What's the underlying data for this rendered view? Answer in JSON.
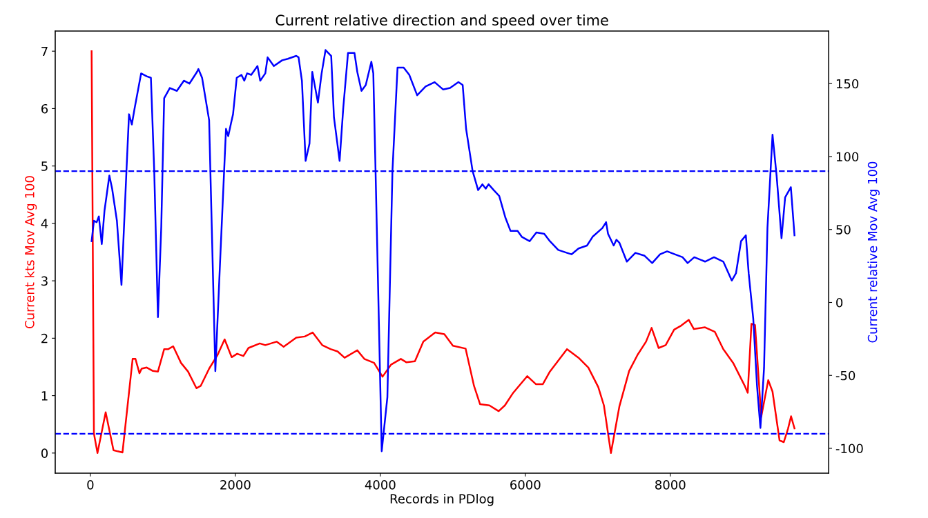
{
  "chart_data": {
    "type": "line",
    "title": "Current relative direction and speed over time",
    "xlabel": "Records in PDlog",
    "ylabel": "Current kts Mov Avg 100",
    "y2label": "Current relative Mov Avg 100",
    "series": [
      {
        "color": "#ff0000",
        "x": [
          17,
          49,
          98,
          211,
          319,
          378,
          443,
          583,
          622,
          677,
          707,
          777,
          863,
          932,
          1018,
          1075,
          1142,
          1250,
          1347,
          1463,
          1522,
          1638,
          1755,
          1852,
          1949,
          2025,
          2111,
          2181,
          2337,
          2413,
          2569,
          2666,
          2840,
          2957,
          3066,
          3198,
          3313,
          3410,
          3507,
          3682,
          3779,
          3914,
          4030,
          4148,
          4283,
          4361,
          4477,
          4593,
          4757,
          4883,
          5001,
          5176,
          5292,
          5376,
          5504,
          5632,
          5718,
          5833,
          6027,
          6145,
          6242,
          6339,
          6575,
          6734,
          6869,
          7006,
          7084,
          7181,
          7297,
          7432,
          7548,
          7665,
          7742,
          7839,
          7936,
          8053,
          8150,
          8254,
          8325,
          8479,
          8615,
          8731,
          8867,
          9023,
          9068,
          9119,
          9169,
          9254,
          9351,
          9410,
          9507,
          9565,
          9623,
          9666,
          9713
        ],
        "values": [
          7.0,
          0.34,
          0.0,
          0.71,
          0.05,
          0.03,
          0.01,
          1.64,
          1.64,
          1.39,
          1.47,
          1.49,
          1.43,
          1.42,
          1.81,
          1.81,
          1.86,
          1.57,
          1.42,
          1.13,
          1.17,
          1.47,
          1.71,
          1.98,
          1.67,
          1.73,
          1.69,
          1.83,
          1.91,
          1.88,
          1.94,
          1.85,
          2.01,
          2.03,
          2.1,
          1.88,
          1.81,
          1.77,
          1.66,
          1.79,
          1.64,
          1.57,
          1.33,
          1.54,
          1.64,
          1.58,
          1.6,
          1.94,
          2.1,
          2.07,
          1.87,
          1.82,
          1.17,
          0.85,
          0.83,
          0.73,
          0.83,
          1.05,
          1.34,
          1.2,
          1.2,
          1.42,
          1.81,
          1.66,
          1.49,
          1.15,
          0.83,
          0.0,
          0.81,
          1.43,
          1.71,
          1.94,
          2.18,
          1.83,
          1.88,
          2.15,
          2.22,
          2.32,
          2.16,
          2.19,
          2.11,
          1.81,
          1.57,
          1.18,
          1.05,
          2.25,
          2.23,
          0.63,
          1.27,
          1.07,
          0.22,
          0.19,
          0.42,
          0.64,
          0.43
        ]
      },
      {
        "color": "#0000ff",
        "axis": "y2",
        "x": [
          17,
          49,
          87,
          117,
          157,
          195,
          262,
          300,
          366,
          429,
          494,
          533,
          572,
          610,
          700,
          777,
          835,
          881,
          932,
          978,
          1018,
          1096,
          1193,
          1290,
          1366,
          1471,
          1490,
          1541,
          1638,
          1724,
          1793,
          1871,
          1902,
          1941,
          1968,
          2019,
          2084,
          2123,
          2162,
          2219,
          2305,
          2343,
          2413,
          2445,
          2531,
          2646,
          2724,
          2840,
          2872,
          2918,
          2969,
          3023,
          3061,
          3139,
          3190,
          3244,
          3322,
          3360,
          3438,
          3488,
          3554,
          3643,
          3682,
          3740,
          3799,
          3876,
          3903,
          3934,
          4019,
          4097,
          4167,
          4237,
          4322,
          4399,
          4508,
          4624,
          4749,
          4865,
          4962,
          5077,
          5136,
          5183,
          5273,
          5349,
          5408,
          5454,
          5493,
          5564,
          5640,
          5726,
          5796,
          5893,
          5951,
          6059,
          6153,
          6261,
          6339,
          6454,
          6575,
          6637,
          6734,
          6851,
          6928,
          7063,
          7114,
          7141,
          7219,
          7257,
          7297,
          7400,
          7518,
          7645,
          7750,
          7859,
          7956,
          8061,
          8169,
          8239,
          8331,
          8479,
          8603,
          8731,
          8848,
          8906,
          8976,
          9042,
          9081,
          9144,
          9196,
          9243,
          9293,
          9340,
          9410,
          9468,
          9534,
          9584,
          9663,
          9713
        ],
        "values": [
          42,
          56,
          55,
          59,
          40,
          63,
          87,
          78,
          56,
          12,
          86,
          129,
          122,
          133,
          157,
          155,
          154,
          90,
          -10,
          52,
          140,
          147,
          145,
          152,
          150,
          158,
          160,
          154,
          125,
          -47,
          32,
          119,
          114,
          123,
          129,
          154,
          156,
          152,
          157,
          156,
          162,
          152,
          157,
          168,
          162,
          166,
          167,
          169,
          168,
          152,
          97,
          109,
          158,
          137,
          157,
          173,
          169,
          127,
          97,
          133,
          171,
          171,
          158,
          145,
          149,
          165,
          157,
          90,
          -102,
          -65,
          90,
          161,
          161,
          156,
          142,
          148,
          151,
          146,
          147,
          151,
          149,
          119,
          90,
          77,
          81,
          78,
          81,
          77,
          73,
          58,
          49,
          49,
          45,
          42,
          48,
          47,
          42,
          36,
          34,
          33,
          37,
          39,
          45,
          51,
          55,
          47,
          39,
          43,
          41,
          28,
          34,
          32,
          27,
          33,
          35,
          33,
          31,
          27,
          31,
          28,
          31,
          28,
          15,
          20,
          42,
          46,
          20,
          -11,
          -57,
          -86,
          -45,
          51,
          115,
          86,
          44,
          72,
          79,
          46
        ]
      }
    ],
    "xlim": [
      -485,
      10185
    ],
    "xticks": [
      0,
      2000,
      4000,
      6000,
      8000
    ],
    "ylim": [
      -0.35,
      7.35
    ],
    "yticks": [
      0,
      1,
      2,
      3,
      4,
      5,
      6,
      7
    ],
    "y2lim": [
      -117,
      186
    ],
    "y2ticks": [
      -100,
      -50,
      0,
      50,
      100,
      150
    ],
    "ref_lines": [
      {
        "axis": "y2",
        "value": 90,
        "color": "#0000ff",
        "line_style": "dashed"
      },
      {
        "axis": "y2",
        "value": -90,
        "color": "#0000ff",
        "line_style": "dashed"
      }
    ],
    "grid": false,
    "legend": false
  }
}
